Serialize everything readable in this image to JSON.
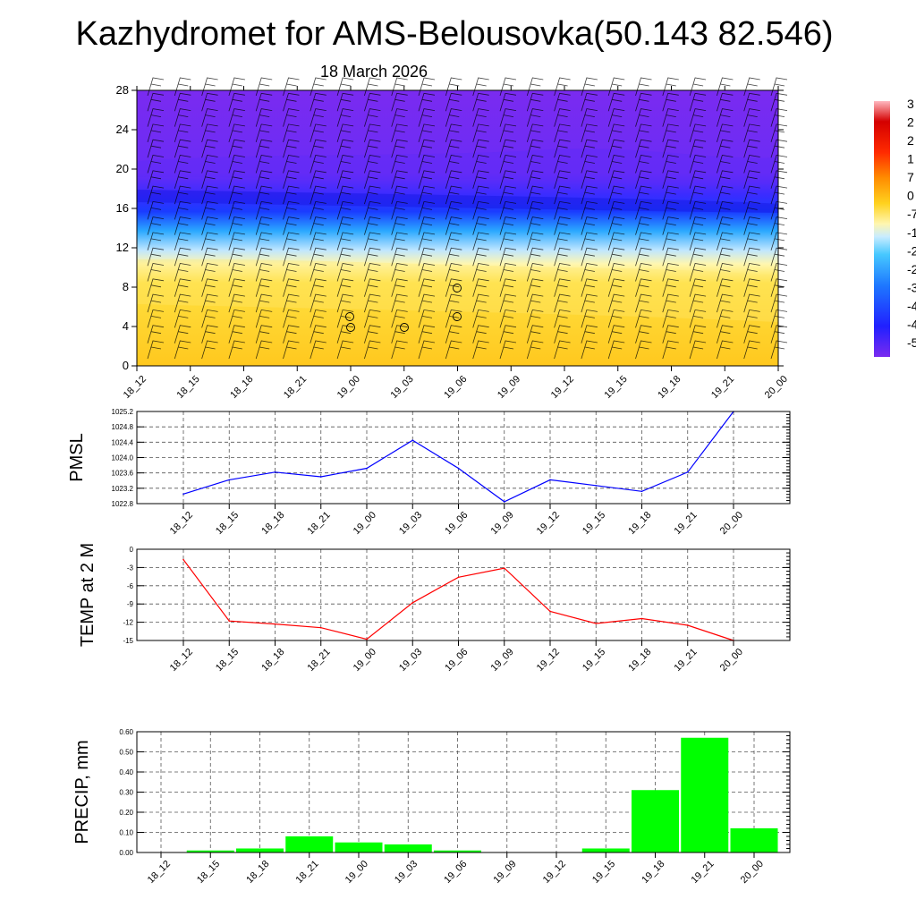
{
  "title": "Kazhydromet for AMS-Belousovka(50.143 82.546)",
  "subtitle": "18 March 2026",
  "categories": [
    "18_12",
    "18_15",
    "18_18",
    "18_21",
    "19_00",
    "19_03",
    "19_06",
    "19_09",
    "19_12",
    "19_15",
    "19_18",
    "19_21",
    "20_00"
  ],
  "chart_data": [
    {
      "type": "heatmap",
      "name": "upper-air-cross-section",
      "y_axis": {
        "ticks": [
          0,
          4,
          8,
          12,
          16,
          20,
          24,
          28
        ],
        "ylim": [
          0,
          28
        ]
      },
      "colorbar_labels": [
        "3",
        "2",
        "2",
        "1",
        "7",
        "0",
        "-7",
        "-1",
        "-2",
        "-2",
        "-3",
        "-4",
        "-4",
        "-5"
      ],
      "colors": {
        "warm": "#ffd21e",
        "warm_light": "#fff2a0",
        "cool_light": "#bfe6ff",
        "cool": "#28aaff",
        "cold": "#2828ff",
        "coldest": "#7a2bf0"
      }
    },
    {
      "type": "line",
      "name": "pmsl",
      "ylabel": "PMSL",
      "ylim": [
        1022.8,
        1025.2
      ],
      "yticks": [
        "1022.8",
        "1023.2",
        "1023.6",
        "1024.0",
        "1024.4",
        "1024.8",
        "1025.2"
      ],
      "values": [
        1023.05,
        1023.42,
        1023.62,
        1023.5,
        1023.72,
        1024.45,
        1023.72,
        1022.85,
        1023.42,
        1023.27,
        1023.12,
        1023.62,
        1025.2
      ],
      "color": "#0000ff"
    },
    {
      "type": "line",
      "name": "temp-2m",
      "ylabel": "TEMP at 2 M",
      "ylim": [
        -15,
        0
      ],
      "yticks": [
        "0",
        "-3",
        "-6",
        "-9",
        "-12",
        "-15"
      ],
      "values": [
        -1.7,
        -11.8,
        -12.3,
        -12.9,
        -14.8,
        -8.8,
        -4.6,
        -3.1,
        -10.2,
        -12.2,
        -11.4,
        -12.5,
        -15
      ],
      "color": "#ff0000"
    },
    {
      "type": "bar",
      "name": "precip",
      "ylabel": "PRECIP, mm",
      "ylim": [
        0,
        0.6
      ],
      "yticks": [
        "0.00",
        "0.10",
        "0.20",
        "0.30",
        "0.40",
        "0.50",
        "0.60"
      ],
      "values": [
        0,
        0.01,
        0.02,
        0.08,
        0.05,
        0.04,
        0.01,
        0,
        0,
        0.02,
        0.31,
        0.57,
        0.12
      ],
      "color": "#00ff00"
    }
  ]
}
